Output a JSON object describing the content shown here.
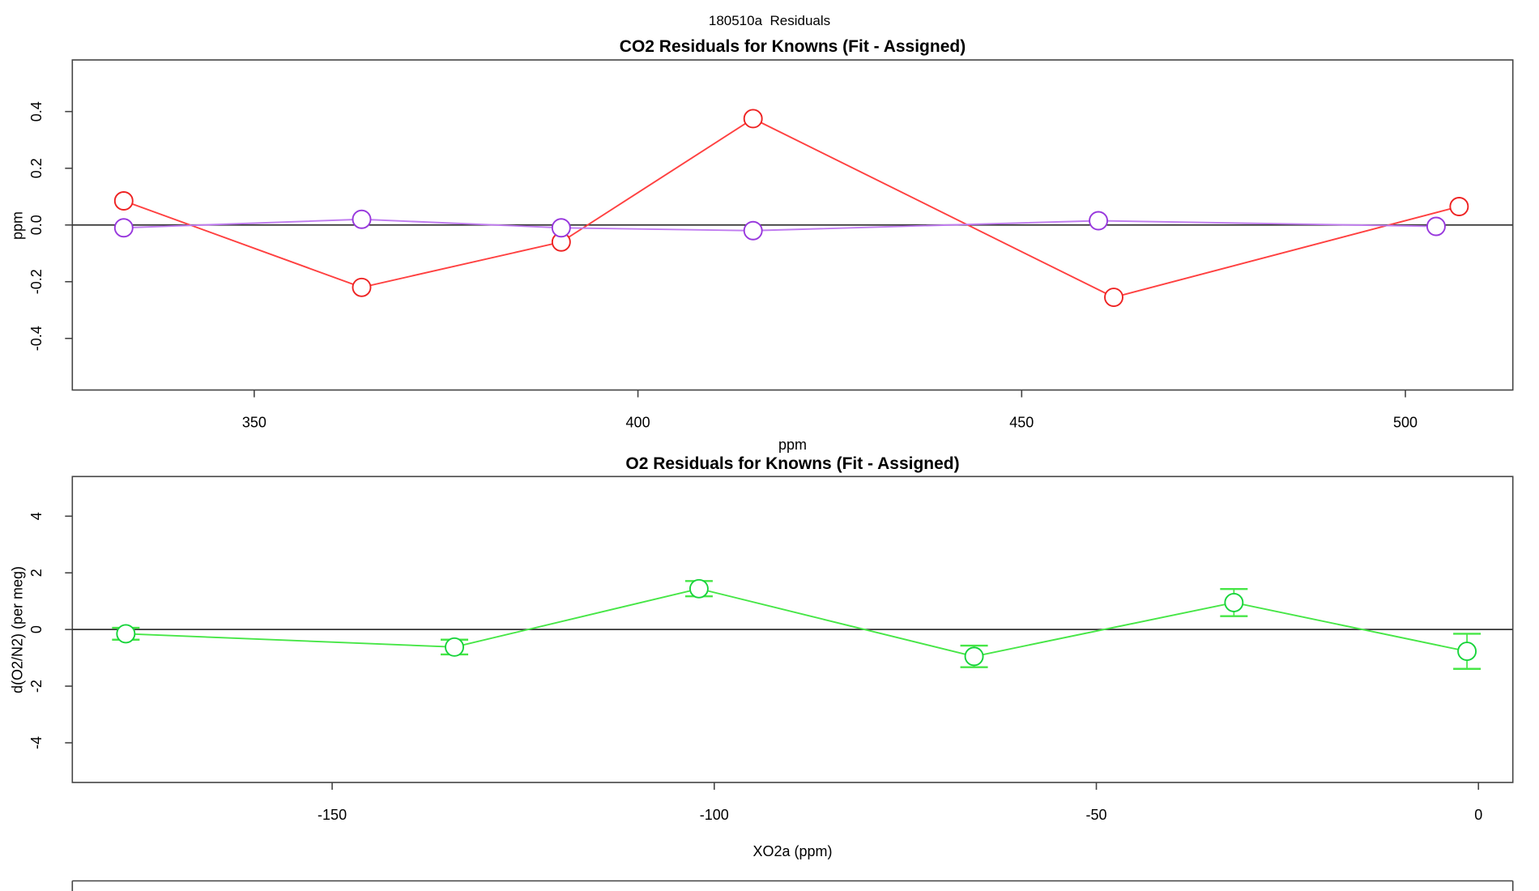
{
  "page": {
    "title": "180510a  Residuals"
  },
  "chart_data": [
    {
      "type": "line",
      "title": "CO2 Residuals for Knowns (Fit - Assigned)",
      "xlabel": "ppm",
      "ylabel": "ppm",
      "xlim": [
        326.3,
        514.0
      ],
      "ylim": [
        -0.582,
        0.582
      ],
      "xticks": [
        "350",
        "400",
        "450",
        "500"
      ],
      "xtick_values": [
        350,
        400,
        450,
        500
      ],
      "yticks": [
        "-0.4",
        "-0.2",
        "0.0",
        "0.2",
        "0.4"
      ],
      "ytick_values": [
        -0.4,
        -0.2,
        0.0,
        0.2,
        0.4
      ],
      "zero_line": true,
      "grid": false,
      "legend": "none",
      "series": [
        {
          "name": "co2-residual-red",
          "line_color": "#ff4040",
          "marker_color": "#ee2222",
          "x": [
            333,
            364,
            390,
            415,
            462,
            507
          ],
          "y": [
            0.085,
            -0.22,
            -0.06,
            0.375,
            -0.255,
            0.065
          ]
        },
        {
          "name": "co2-residual-purple",
          "line_color": "#c07cf0",
          "marker_color": "#9838dd",
          "x": [
            333,
            364,
            390,
            415,
            460,
            504
          ],
          "y": [
            -0.01,
            0.02,
            -0.01,
            -0.02,
            0.015,
            -0.005
          ]
        }
      ]
    },
    {
      "type": "line",
      "title": "O2 Residuals for Knowns (Fit - Assigned)",
      "xlabel": "XO2a (ppm)",
      "ylabel": "d(O2/N2) (per meg)",
      "xlim": [
        -184.0,
        4.5
      ],
      "ylim": [
        -5.4,
        5.4
      ],
      "xticks": [
        "-150",
        "-100",
        "-50",
        "0"
      ],
      "xtick_values": [
        -150,
        -100,
        -50,
        0
      ],
      "yticks": [
        "-4",
        "-2",
        "0",
        "2",
        "4"
      ],
      "ytick_values": [
        -4,
        -2,
        0,
        2,
        4
      ],
      "zero_line": true,
      "grid": false,
      "legend": "none",
      "series": [
        {
          "name": "o2-residual-green",
          "line_color": "#46e646",
          "marker_color": "#17d43b",
          "x": [
            -177,
            -134,
            -102,
            -66,
            -32,
            -1.5
          ],
          "y": [
            -0.15,
            -0.62,
            1.44,
            -0.95,
            0.95,
            -0.77
          ],
          "yerr": [
            0.21,
            0.26,
            0.27,
            0.38,
            0.48,
            0.62
          ]
        }
      ]
    }
  ]
}
